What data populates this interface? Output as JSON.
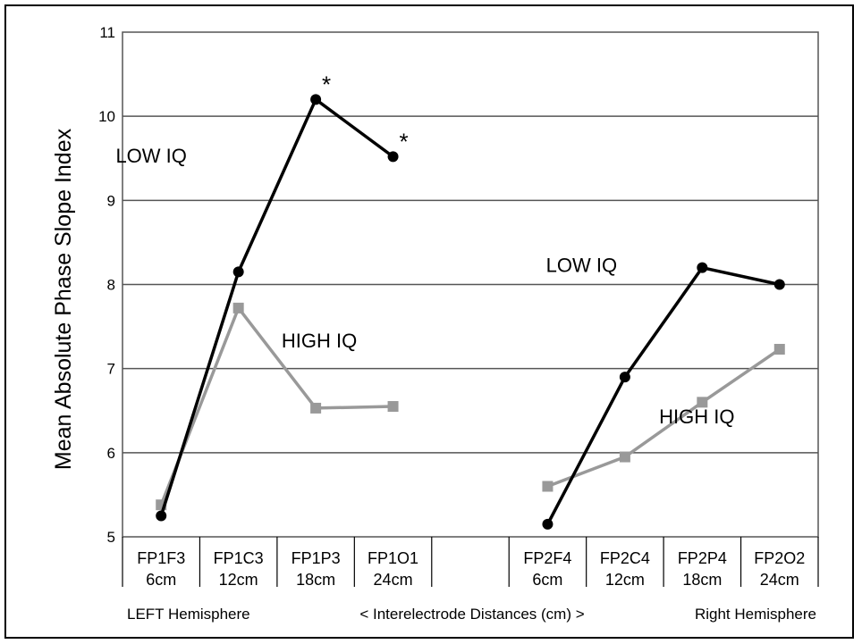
{
  "chart_data": {
    "type": "line",
    "ylabel": "Mean Absolute Phase Slope Index",
    "ylim": [
      5,
      11
    ],
    "yticks": [
      5,
      6,
      7,
      8,
      9,
      10,
      11
    ],
    "grid": "horizontal",
    "categories": [
      {
        "name": "FP1F3",
        "dist": "6cm"
      },
      {
        "name": "FP1C3",
        "dist": "12cm"
      },
      {
        "name": "FP1P3",
        "dist": "18cm"
      },
      {
        "name": "FP1O1",
        "dist": "24cm"
      },
      {
        "name": "",
        "dist": ""
      },
      {
        "name": "FP2F4",
        "dist": "6cm"
      },
      {
        "name": "FP2C4",
        "dist": "12cm"
      },
      {
        "name": "FP2P4",
        "dist": "18cm"
      },
      {
        "name": "FP2O2",
        "dist": "24cm"
      }
    ],
    "series": [
      {
        "label": "LOW IQ",
        "group": "left",
        "color": "#000000",
        "marker": "circle",
        "x": [
          0,
          1,
          2,
          3
        ],
        "values": [
          5.25,
          8.15,
          10.2,
          9.52
        ]
      },
      {
        "label": "HIGH IQ",
        "group": "left",
        "color": "#999999",
        "marker": "square",
        "x": [
          0,
          1,
          2,
          3
        ],
        "values": [
          5.38,
          7.72,
          6.53,
          6.55
        ]
      },
      {
        "label": "LOW IQ",
        "group": "right",
        "color": "#000000",
        "marker": "circle",
        "x": [
          5,
          6,
          7,
          8
        ],
        "values": [
          5.15,
          6.9,
          8.2,
          8.0
        ]
      },
      {
        "label": "HIGH IQ",
        "group": "right",
        "color": "#999999",
        "marker": "square",
        "x": [
          5,
          6,
          7,
          8
        ],
        "values": [
          5.6,
          5.95,
          6.6,
          7.23
        ]
      }
    ],
    "annotations": [
      {
        "text": "*",
        "x": 2,
        "y": 10.2
      },
      {
        "text": "*",
        "x": 3,
        "y": 9.52
      }
    ],
    "footer": {
      "left": "LEFT  Hemisphere",
      "center": "< Interelectrode Distances (cm) >",
      "right": "Right Hemisphere"
    }
  }
}
